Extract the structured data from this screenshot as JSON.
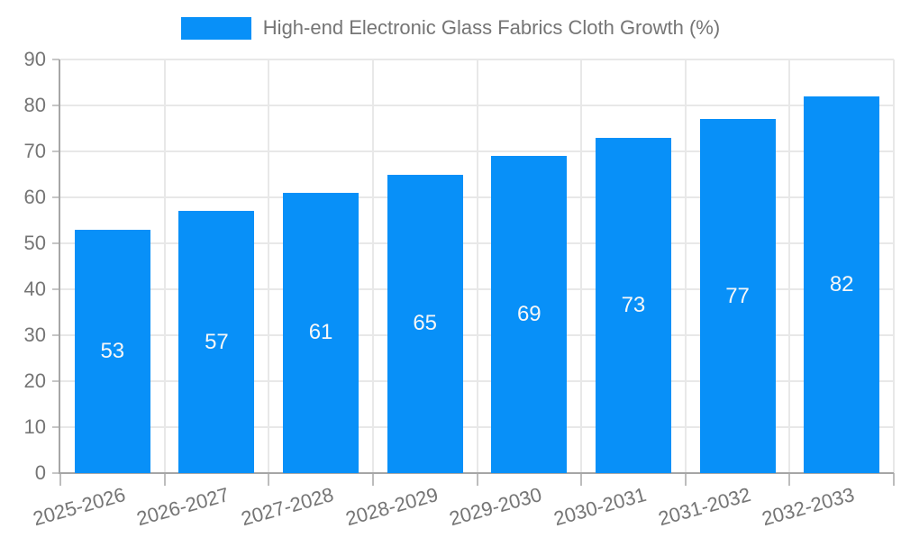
{
  "chart_data": {
    "type": "bar",
    "legend": [
      {
        "label": "High-end Electronic Glass Fabrics Cloth Growth (%)",
        "color": "#0890f8"
      }
    ],
    "legend_position": "top",
    "categories": [
      "2025-2026",
      "2026-2027",
      "2027-2028",
      "2028-2029",
      "2029-2030",
      "2030-2031",
      "2031-2032",
      "2032-2033"
    ],
    "series": [
      {
        "name": "High-end Electronic Glass Fabrics Cloth Growth (%)",
        "values": [
          53,
          57,
          61,
          65,
          69,
          73,
          77,
          82
        ]
      }
    ],
    "value_labels_shown": true,
    "xlabel": "",
    "ylabel": "",
    "ylim": [
      0,
      90
    ],
    "ytick_step": 10,
    "grid": true,
    "x_label_rotation_deg": -15.5,
    "colors": {
      "bar": "#0890f8",
      "value_label": "#f7f7f7",
      "axis_text": "#757575",
      "grid_line": "#e8e8e8",
      "axis_line": "#a6a6a6",
      "background": "#ffffff"
    }
  }
}
